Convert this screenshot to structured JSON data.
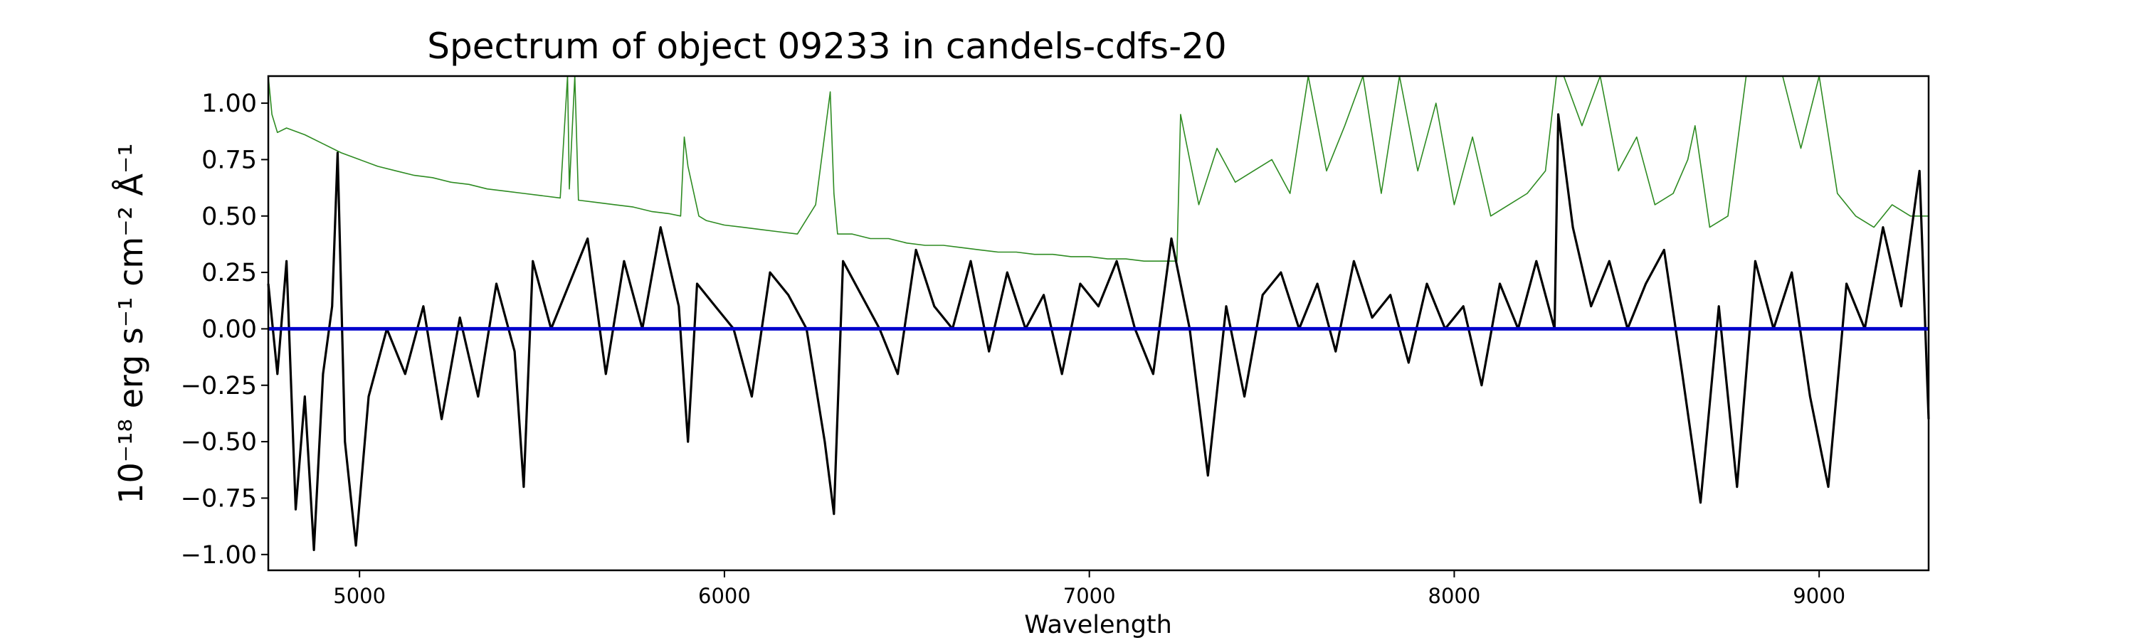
{
  "chart_data": {
    "type": "line",
    "title": "Spectrum of object 09233 in candels-cdfs-20",
    "xlabel": "Wavelength",
    "ylabel": "10⁻¹⁸ erg s⁻¹ cm⁻² Å⁻¹",
    "xlim": [
      4750,
      9300
    ],
    "ylim": [
      -1.07,
      1.12
    ],
    "xticks": [
      5000,
      6000,
      7000,
      8000,
      9000
    ],
    "xtick_labels": [
      "5000",
      "6000",
      "7000",
      "8000",
      "9000"
    ],
    "yticks": [
      -1.0,
      -0.75,
      -0.5,
      -0.25,
      0.0,
      0.25,
      0.5,
      0.75,
      1.0
    ],
    "ytick_labels": [
      "−1.00",
      "−0.75",
      "−0.50",
      "−0.25",
      "0.00",
      "0.25",
      "0.50",
      "0.75",
      "1.00"
    ],
    "grid": false,
    "colors": {
      "flux": "#000000",
      "error": "#2e8b22",
      "zero": "#0000cc"
    },
    "series": [
      {
        "role": "flux",
        "x": [
          4750,
          4775,
          4800,
          4825,
          4850,
          4875,
          4900,
          4925,
          4940,
          4960,
          4990,
          5025,
          5075,
          5125,
          5175,
          5225,
          5275,
          5325,
          5375,
          5425,
          5450,
          5475,
          5525,
          5575,
          5625,
          5675,
          5725,
          5775,
          5825,
          5875,
          5900,
          5925,
          5975,
          6025,
          6075,
          6125,
          6175,
          6225,
          6275,
          6300,
          6325,
          6375,
          6425,
          6475,
          6525,
          6575,
          6625,
          6675,
          6725,
          6775,
          6825,
          6875,
          6925,
          6975,
          7025,
          7075,
          7125,
          7175,
          7225,
          7275,
          7325,
          7375,
          7425,
          7475,
          7525,
          7575,
          7625,
          7675,
          7725,
          7775,
          7825,
          7875,
          7925,
          7975,
          8025,
          8075,
          8125,
          8175,
          8225,
          8275,
          8285,
          8325,
          8375,
          8425,
          8475,
          8525,
          8575,
          8625,
          8675,
          8725,
          8775,
          8825,
          8875,
          8925,
          8975,
          9025,
          9075,
          9125,
          9175,
          9225,
          9275,
          9300
        ],
        "y": [
          0.2,
          -0.2,
          0.3,
          -0.8,
          -0.3,
          -0.98,
          -0.2,
          0.1,
          0.78,
          -0.5,
          -0.96,
          -0.3,
          0.0,
          -0.2,
          0.1,
          -0.4,
          0.05,
          -0.3,
          0.2,
          -0.1,
          -0.7,
          0.3,
          0.0,
          0.2,
          0.4,
          -0.2,
          0.3,
          0.0,
          0.45,
          0.1,
          -0.5,
          0.2,
          0.1,
          0.0,
          -0.3,
          0.25,
          0.15,
          0.0,
          -0.5,
          -0.82,
          0.3,
          0.15,
          0.0,
          -0.2,
          0.35,
          0.1,
          0.0,
          0.3,
          -0.1,
          0.25,
          0.0,
          0.15,
          -0.2,
          0.2,
          0.1,
          0.3,
          0.0,
          -0.2,
          0.4,
          0.0,
          -0.65,
          0.1,
          -0.3,
          0.15,
          0.25,
          0.0,
          0.2,
          -0.1,
          0.3,
          0.05,
          0.15,
          -0.15,
          0.2,
          0.0,
          0.1,
          -0.25,
          0.2,
          0.0,
          0.3,
          0.0,
          0.95,
          0.45,
          0.1,
          0.3,
          0.0,
          0.2,
          0.35,
          -0.2,
          -0.77,
          0.1,
          -0.7,
          0.3,
          0.0,
          0.25,
          -0.3,
          -0.7,
          0.2,
          0.0,
          0.45,
          0.1,
          0.7,
          -0.4
        ]
      },
      {
        "role": "error",
        "x": [
          4750,
          4760,
          4775,
          4800,
          4850,
          4900,
          4950,
          5000,
          5050,
          5100,
          5150,
          5200,
          5250,
          5300,
          5350,
          5400,
          5450,
          5500,
          5550,
          5570,
          5575,
          5590,
          5600,
          5650,
          5700,
          5750,
          5800,
          5850,
          5880,
          5890,
          5900,
          5930,
          5950,
          6000,
          6050,
          6100,
          6150,
          6200,
          6250,
          6290,
          6300,
          6310,
          6350,
          6400,
          6450,
          6500,
          6550,
          6600,
          6650,
          6700,
          6750,
          6800,
          6850,
          6900,
          6950,
          7000,
          7050,
          7100,
          7150,
          7200,
          7240,
          7250,
          7300,
          7350,
          7400,
          7450,
          7500,
          7550,
          7600,
          7650,
          7700,
          7750,
          7800,
          7850,
          7900,
          7950,
          8000,
          8050,
          8100,
          8150,
          8200,
          8250,
          8280,
          8300,
          8350,
          8400,
          8450,
          8500,
          8550,
          8600,
          8640,
          8660,
          8700,
          8750,
          8800,
          8850,
          8900,
          8950,
          9000,
          9050,
          9100,
          9150,
          9200,
          9250,
          9300
        ],
        "y": [
          1.12,
          0.95,
          0.87,
          0.89,
          0.86,
          0.82,
          0.78,
          0.75,
          0.72,
          0.7,
          0.68,
          0.67,
          0.65,
          0.64,
          0.62,
          0.61,
          0.6,
          0.59,
          0.58,
          1.12,
          0.62,
          1.12,
          0.57,
          0.56,
          0.55,
          0.54,
          0.52,
          0.51,
          0.5,
          0.85,
          0.72,
          0.5,
          0.48,
          0.46,
          0.45,
          0.44,
          0.43,
          0.42,
          0.55,
          1.05,
          0.6,
          0.42,
          0.42,
          0.4,
          0.4,
          0.38,
          0.37,
          0.37,
          0.36,
          0.35,
          0.34,
          0.34,
          0.33,
          0.33,
          0.32,
          0.32,
          0.31,
          0.31,
          0.3,
          0.3,
          0.3,
          0.95,
          0.55,
          0.8,
          0.65,
          0.7,
          0.75,
          0.6,
          1.12,
          0.7,
          0.9,
          1.12,
          0.6,
          1.12,
          0.7,
          1.0,
          0.55,
          0.85,
          0.5,
          0.55,
          0.6,
          0.7,
          1.12,
          1.12,
          0.9,
          1.12,
          0.7,
          0.85,
          0.55,
          0.6,
          0.75,
          0.9,
          0.45,
          0.5,
          1.12,
          1.12,
          1.12,
          0.8,
          1.12,
          0.6,
          0.5,
          0.45,
          0.55,
          0.5,
          0.5
        ]
      },
      {
        "role": "zero",
        "x": [
          4750,
          9300
        ],
        "y": [
          0,
          0
        ]
      }
    ]
  }
}
